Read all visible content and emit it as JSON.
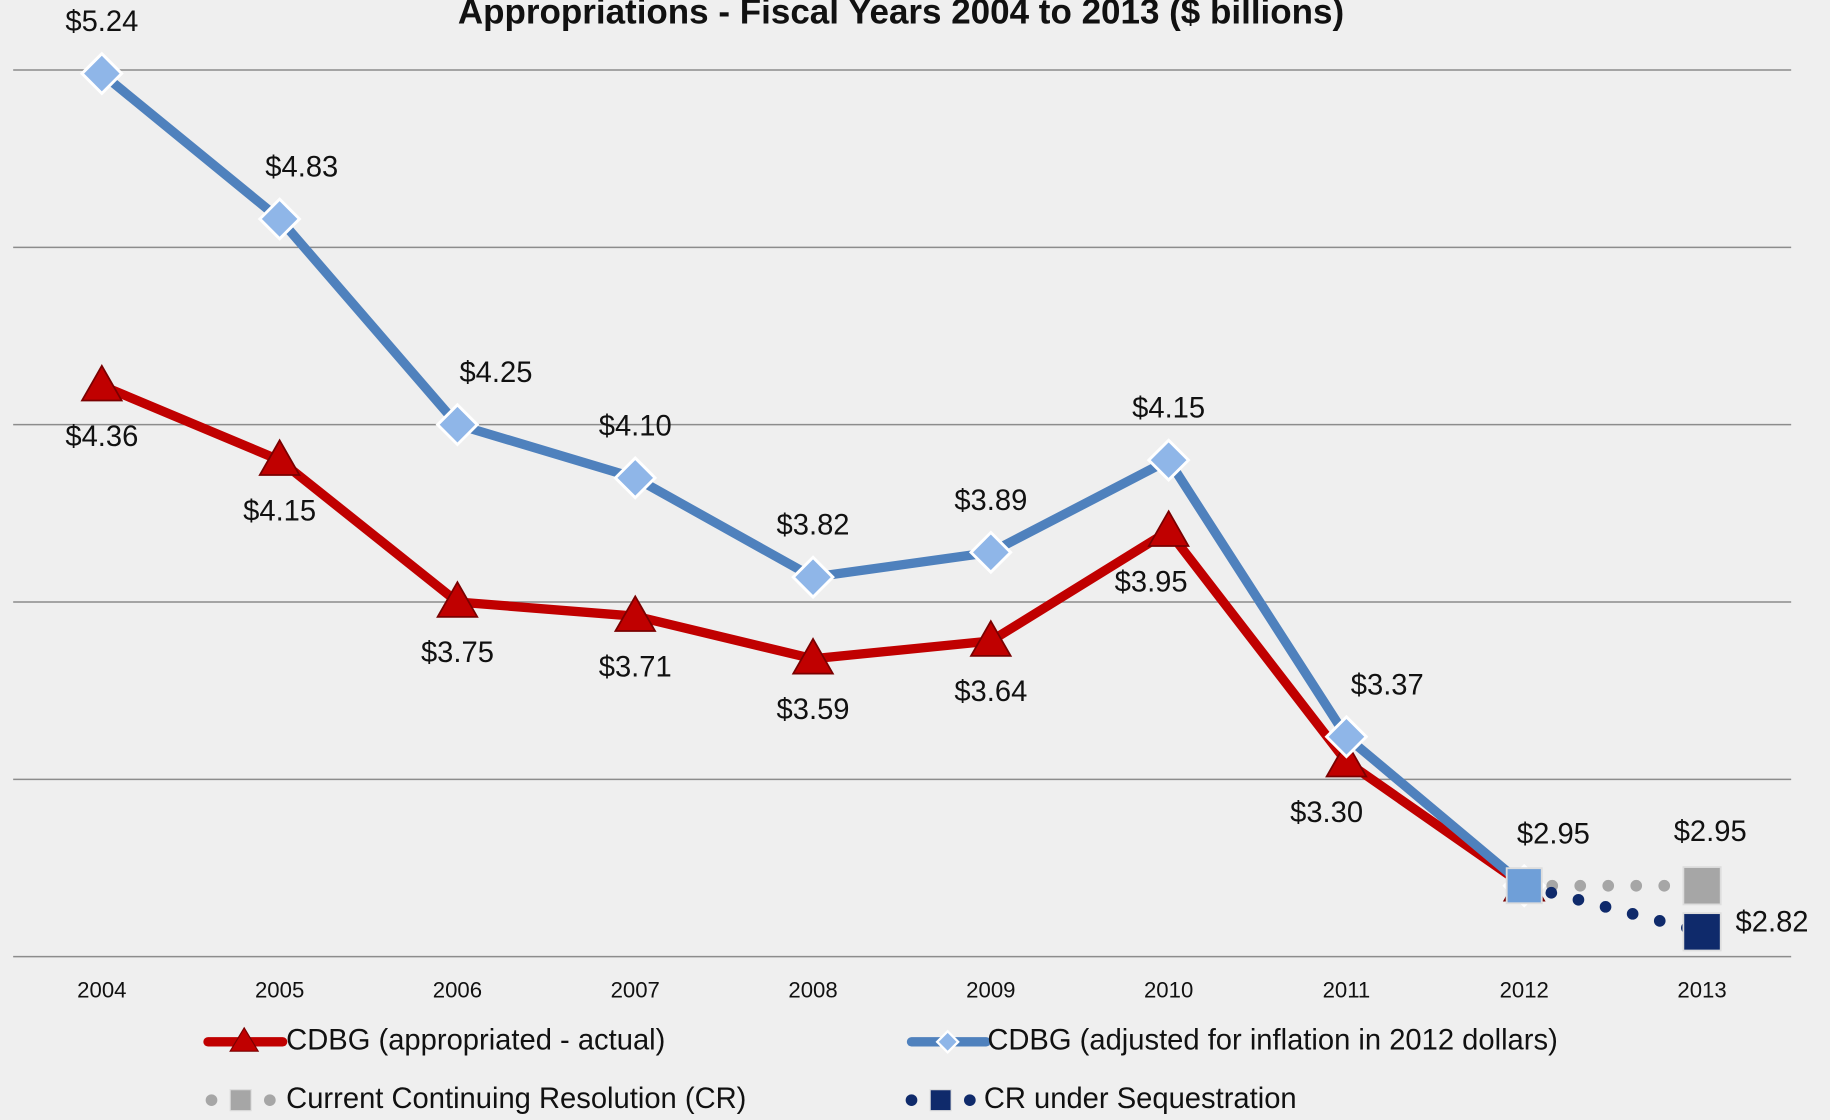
{
  "chart_data": {
    "type": "line",
    "title": "Appropriations - Fiscal Years 2004 to 2013 ($ billions)",
    "categories": [
      "2004",
      "2005",
      "2006",
      "2007",
      "2008",
      "2009",
      "2010",
      "2011",
      "2012",
      "2013"
    ],
    "ylim": [
      2.75,
      5.25
    ],
    "yticks": [
      2.75,
      3.25,
      3.75,
      4.25,
      4.75,
      5.25
    ],
    "grid": true,
    "series": [
      {
        "name": "CDBG (appropriated - actual)",
        "color": "#c00000",
        "marker": "triangle",
        "style": "solid",
        "values": [
          4.36,
          4.15,
          3.75,
          3.71,
          3.59,
          3.64,
          3.95,
          3.3,
          2.95,
          null
        ],
        "value_labels": [
          "$4.36",
          "$4.15",
          "$3.75",
          "$3.71",
          "$3.59",
          "$3.64",
          "$3.95",
          "$3.30",
          null,
          null
        ]
      },
      {
        "name": "CDBG (adjusted for inflation in 2012 dollars)",
        "color": "#4f81bd",
        "marker": "diamond",
        "style": "solid",
        "values": [
          5.24,
          4.83,
          4.25,
          4.1,
          3.82,
          3.89,
          4.15,
          3.37,
          2.95,
          null
        ],
        "value_labels": [
          "$5.24",
          "$4.83",
          "$4.25",
          "$4.10",
          "$3.82",
          "$3.89",
          "$4.15",
          "$3.37",
          "$2.95",
          null
        ]
      },
      {
        "name": "Current Continuing Resolution (CR)",
        "color": "#a6a6a6",
        "marker": "square",
        "style": "dotted",
        "values": [
          null,
          null,
          null,
          null,
          null,
          null,
          null,
          null,
          2.95,
          2.95
        ],
        "value_labels": [
          null,
          null,
          null,
          null,
          null,
          null,
          null,
          null,
          null,
          "$2.95"
        ]
      },
      {
        "name": "CR under Sequestration",
        "color": "#0f2a6b",
        "marker": "square",
        "style": "dotted",
        "values": [
          null,
          null,
          null,
          null,
          null,
          null,
          null,
          null,
          2.95,
          2.82
        ],
        "value_labels": [
          null,
          null,
          null,
          null,
          null,
          null,
          null,
          null,
          null,
          "$2.82"
        ]
      }
    ]
  }
}
